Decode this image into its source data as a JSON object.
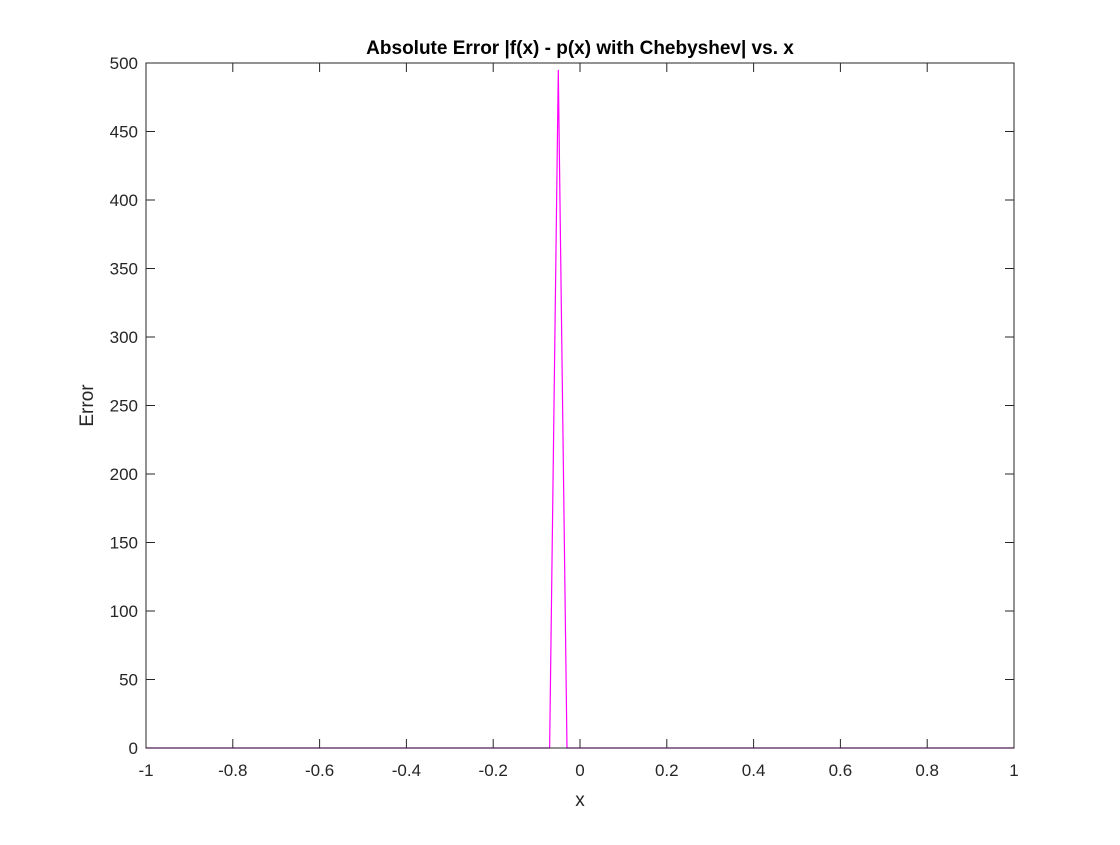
{
  "chart_data": {
    "type": "line",
    "title": "Absolute Error |f(x) - p(x) with Chebyshev| vs. x",
    "xlabel": "x",
    "ylabel": "Error",
    "xlim": [
      -1,
      1
    ],
    "ylim": [
      0,
      500
    ],
    "x_ticks": [
      -1,
      -0.8,
      -0.6,
      -0.4,
      -0.2,
      0,
      0.2,
      0.4,
      0.6,
      0.8,
      1
    ],
    "x_tick_labels": [
      "-1",
      "-0.8",
      "-0.6",
      "-0.4",
      "-0.2",
      "0",
      "0.2",
      "0.4",
      "0.6",
      "0.8",
      "1"
    ],
    "y_ticks": [
      0,
      50,
      100,
      150,
      200,
      250,
      300,
      350,
      400,
      450,
      500
    ],
    "y_tick_labels": [
      "0",
      "50",
      "100",
      "150",
      "200",
      "250",
      "300",
      "350",
      "400",
      "450",
      "500"
    ],
    "grid": false,
    "box": true,
    "series": [
      {
        "color": "#ff00ff",
        "x": [
          -1,
          -0.1,
          -0.07,
          -0.05,
          -0.03,
          1
        ],
        "y": [
          0,
          0,
          0,
          495,
          0,
          0
        ]
      }
    ]
  }
}
